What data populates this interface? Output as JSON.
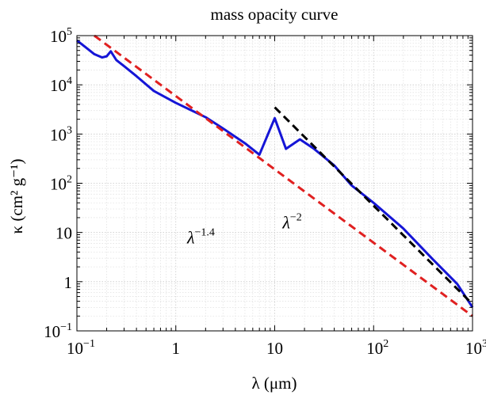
{
  "chart_data": {
    "type": "line",
    "title": "mass opacity curve",
    "xlabel": "λ (μm)",
    "ylabel": "κ (cm² g⁻¹)",
    "xscale": "log",
    "yscale": "log",
    "xlim": [
      0.1,
      1000
    ],
    "ylim": [
      0.1,
      100000
    ],
    "grid": true,
    "x_ticks": [
      {
        "value": 0.1,
        "base": "10",
        "exp": "−1"
      },
      {
        "value": 1,
        "base": "1",
        "exp": ""
      },
      {
        "value": 10,
        "base": "10",
        "exp": ""
      },
      {
        "value": 100,
        "base": "10",
        "exp": "2"
      },
      {
        "value": 1000,
        "base": "10",
        "exp": "3"
      }
    ],
    "y_ticks": [
      {
        "value": 0.1,
        "base": "10",
        "exp": "−1"
      },
      {
        "value": 1,
        "base": "1",
        "exp": ""
      },
      {
        "value": 10,
        "base": "10",
        "exp": ""
      },
      {
        "value": 100,
        "base": "10",
        "exp": "2"
      },
      {
        "value": 1000,
        "base": "10",
        "exp": "3"
      },
      {
        "value": 10000,
        "base": "10",
        "exp": "4"
      },
      {
        "value": 100000,
        "base": "10",
        "exp": "5"
      }
    ],
    "series": [
      {
        "name": "mass opacity",
        "style": "solid",
        "color": "#1515d6",
        "x": [
          0.1,
          0.12,
          0.15,
          0.18,
          0.2,
          0.22,
          0.25,
          0.3,
          0.4,
          0.6,
          1,
          2,
          3,
          5,
          7,
          10,
          13,
          18,
          25,
          40,
          60,
          100,
          200,
          400,
          700,
          1000
        ],
        "y": [
          80000,
          60000,
          42000,
          36000,
          38000,
          48000,
          32000,
          24000,
          15000,
          7500,
          4300,
          2200,
          1300,
          650,
          380,
          2100,
          500,
          780,
          500,
          230,
          90,
          40,
          12,
          2.8,
          0.9,
          0.3
        ]
      },
      {
        "name": "λ^-1.4 power law",
        "style": "dashed",
        "color": "#e02020",
        "x": [
          0.15,
          1000
        ],
        "y": [
          100000,
          0.2
        ]
      },
      {
        "name": "λ^-2 power law",
        "style": "dashed",
        "color": "#000000",
        "x": [
          10,
          1000
        ],
        "y": [
          3500,
          0.35
        ]
      }
    ],
    "annotations": [
      {
        "base": "λ",
        "exp": "−1.4",
        "x": 1.3,
        "y": 6
      },
      {
        "base": "λ",
        "exp": "−2",
        "x": 12,
        "y": 12
      }
    ]
  }
}
